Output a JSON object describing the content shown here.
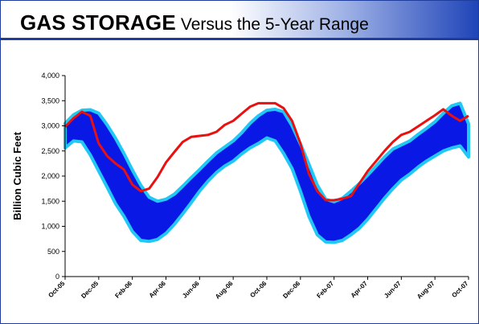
{
  "header": {
    "title_main": "GAS STORAGE",
    "title_sub": "Versus the 5-Year Range"
  },
  "colors": {
    "band_fill": "#0a18e6",
    "band_edge": "#22c8f5",
    "current_line": "#e81010",
    "header_blue": "#1f44b8"
  },
  "chart_data": {
    "type": "area",
    "title": "GAS STORAGE Versus the 5-Year Range",
    "xlabel": "",
    "ylabel": "Billion Cubic Feet",
    "ylim": [
      0,
      4000
    ],
    "yticks": [
      0,
      500,
      1000,
      1500,
      2000,
      2500,
      3000,
      3500,
      4000
    ],
    "ytick_labels": [
      "0",
      "500",
      "1,000",
      "1,500",
      "2,000",
      "2,500",
      "3,000",
      "3,500",
      "4,000"
    ],
    "xtick_labels": [
      "Oct-05",
      "Dec-05",
      "Feb-06",
      "Apr-06",
      "Jun-06",
      "Aug-06",
      "Oct-06",
      "Dec-06",
      "Feb-07",
      "Apr-07",
      "Jun-07",
      "Aug-07",
      "Oct-07"
    ],
    "x_index_range": [
      0,
      24
    ],
    "grid": false,
    "legend": "none",
    "series": [
      {
        "role": "range_max",
        "x": [
          0,
          0.5,
          1,
          1.5,
          2,
          2.5,
          3,
          3.5,
          4,
          4.5,
          5,
          5.5,
          6,
          6.5,
          7,
          7.5,
          8,
          8.5,
          9,
          9.5,
          10,
          10.5,
          11,
          11.5,
          12,
          12.5,
          13,
          13.5,
          14,
          14.5,
          15,
          15.5,
          16,
          16.5,
          17,
          17.5,
          18,
          18.5,
          19,
          19.5,
          20,
          20.5,
          21,
          21.5,
          22,
          22.5,
          23,
          23.5,
          24
        ],
        "values": [
          3050,
          3220,
          3310,
          3320,
          3250,
          3020,
          2750,
          2450,
          2120,
          1820,
          1580,
          1500,
          1540,
          1640,
          1800,
          1970,
          2130,
          2300,
          2460,
          2580,
          2700,
          2860,
          3050,
          3200,
          3310,
          3330,
          3280,
          3000,
          2640,
          2240,
          1820,
          1540,
          1490,
          1560,
          1700,
          1850,
          2020,
          2200,
          2380,
          2540,
          2620,
          2700,
          2830,
          2950,
          3080,
          3250,
          3400,
          3450,
          3040
        ]
      },
      {
        "role": "range_min",
        "x": [
          0,
          0.5,
          1,
          1.5,
          2,
          2.5,
          3,
          3.5,
          4,
          4.5,
          5,
          5.5,
          6,
          6.5,
          7,
          7.5,
          8,
          8.5,
          9,
          9.5,
          10,
          10.5,
          11,
          11.5,
          12,
          12.5,
          13,
          13.5,
          14,
          14.5,
          15,
          15.5,
          16,
          16.5,
          17,
          17.5,
          18,
          18.5,
          19,
          19.5,
          20,
          20.5,
          21,
          21.5,
          22,
          22.5,
          23,
          23.5,
          24
        ],
        "values": [
          2560,
          2700,
          2680,
          2420,
          2100,
          1780,
          1450,
          1200,
          900,
          720,
          700,
          740,
          860,
          1040,
          1250,
          1470,
          1700,
          1900,
          2070,
          2200,
          2300,
          2440,
          2560,
          2650,
          2760,
          2700,
          2450,
          2150,
          1700,
          1200,
          830,
          690,
          680,
          720,
          830,
          960,
          1140,
          1350,
          1560,
          1750,
          1920,
          2040,
          2180,
          2300,
          2400,
          2500,
          2560,
          2600,
          2380
        ]
      },
      {
        "name": "",
        "role": "current",
        "x": [
          0,
          0.5,
          1,
          1.5,
          2,
          2.5,
          3,
          3.5,
          4,
          4.5,
          5,
          5.5,
          6,
          6.5,
          7,
          7.5,
          8,
          8.5,
          9,
          9.5,
          10,
          10.5,
          11,
          11.5,
          12,
          12.5,
          13,
          13.5,
          14,
          14.5,
          15,
          15.5,
          16,
          16.5,
          17,
          17.5,
          18,
          18.5,
          19,
          19.5,
          20,
          20.5,
          21,
          21.5,
          22,
          22.5,
          23,
          23.5,
          24
        ],
        "values": [
          2980,
          3150,
          3280,
          3200,
          2650,
          2400,
          2250,
          2130,
          1830,
          1700,
          1750,
          1980,
          2270,
          2480,
          2680,
          2780,
          2800,
          2820,
          2880,
          3020,
          3100,
          3240,
          3380,
          3450,
          3450,
          3450,
          3350,
          3100,
          2650,
          2050,
          1700,
          1520,
          1520,
          1550,
          1600,
          1850,
          2100,
          2300,
          2500,
          2680,
          2820,
          2880,
          2990,
          3100,
          3210,
          3330,
          3200,
          3100,
          3200
        ]
      }
    ]
  }
}
